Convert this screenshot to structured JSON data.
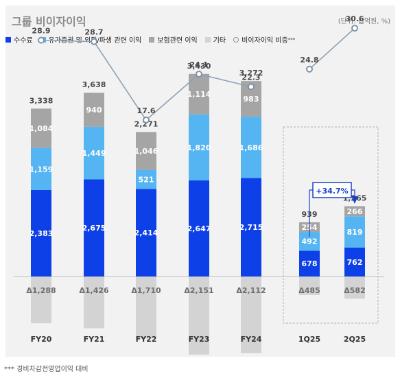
{
  "header": {
    "title": "그룹 비이자이익",
    "unit": "(단위: 십억원, %)"
  },
  "legend": [
    {
      "label": "수수료",
      "color": "#0d40e6"
    },
    {
      "label": "유가증권 및 외환/파생 관련 이익",
      "color": "#55b5f2"
    },
    {
      "label": "보험관련 이익",
      "color": "#a5a5a5"
    },
    {
      "label": "기타",
      "color": "#d3d3d3"
    }
  ],
  "ratio_legend": {
    "label": "비이자이익 비중",
    "sup": "***"
  },
  "growth_label": "+34.7%",
  "footnote": "*** 경비차감전영업이익 대비",
  "chart_data": {
    "type": "bar",
    "stacked": true,
    "categories": [
      "FY20",
      "FY21",
      "FY22",
      "FY23",
      "FY24",
      "1Q25",
      "2Q25"
    ],
    "series": [
      {
        "name": "수수료",
        "values": [
          2383,
          2675,
          2414,
          2647,
          2715,
          678,
          762
        ],
        "labels": [
          "2,383",
          "2,675",
          "2,414",
          "2,647",
          "2,715",
          "678",
          "762"
        ]
      },
      {
        "name": "유가증권 및 외환/파생 관련 이익",
        "values": [
          1159,
          1449,
          521,
          1820,
          1686,
          492,
          819
        ],
        "labels": [
          "1,159",
          "1,449",
          "521",
          "1,820",
          "1,686",
          "492",
          "819"
        ]
      },
      {
        "name": "보험관련 이익",
        "values": [
          1084,
          940,
          1046,
          1114,
          983,
          254,
          266
        ],
        "labels": [
          "1,084",
          "940",
          "1,046",
          "1,114",
          "983",
          "254",
          "266"
        ]
      },
      {
        "name": "기타",
        "values": [
          -1288,
          -1426,
          -1710,
          -2151,
          -2112,
          -485,
          -582
        ],
        "labels": [
          "Δ1,288",
          "Δ1,426",
          "Δ1,710",
          "Δ2,151",
          "Δ2,112",
          "Δ485",
          "Δ582"
        ]
      }
    ],
    "totals": [
      3338,
      3638,
      2271,
      3430,
      3272,
      939,
      1265
    ],
    "total_labels": [
      "3,338",
      "3,638",
      "2,271",
      "3,430",
      "3,272",
      "939",
      "1,265"
    ],
    "ratio": {
      "name": "비이자이익 비중",
      "values": [
        28.9,
        28.7,
        17.6,
        24.1,
        22.3,
        24.8,
        30.6
      ],
      "labels": [
        "28.9",
        "28.7",
        "17.6",
        "24.1",
        "22.3",
        "24.8",
        "30.6"
      ]
    }
  }
}
